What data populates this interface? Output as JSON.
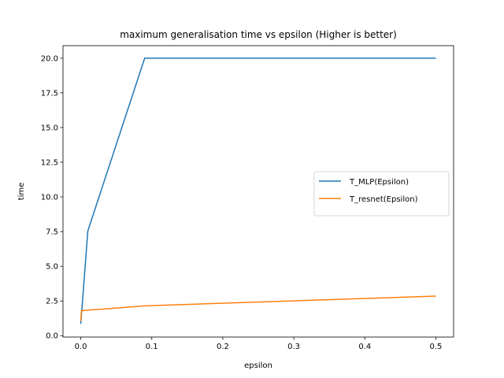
{
  "chart_data": {
    "type": "line",
    "title": "maximum generalisation time vs epsilon (Higher is better)",
    "xlabel": "epsilon",
    "ylabel": "time",
    "xlim": [
      -0.025,
      0.525
    ],
    "ylim": [
      -0.1,
      20.9
    ],
    "xticks": [
      0.0,
      0.1,
      0.2,
      0.3,
      0.4,
      0.5
    ],
    "xtick_labels": [
      "0.0",
      "0.1",
      "0.2",
      "0.3",
      "0.4",
      "0.5"
    ],
    "yticks": [
      0.0,
      2.5,
      5.0,
      7.5,
      10.0,
      12.5,
      15.0,
      17.5,
      20.0
    ],
    "ytick_labels": [
      "0.0",
      "2.5",
      "5.0",
      "7.5",
      "10.0",
      "12.5",
      "15.0",
      "17.5",
      "20.0"
    ],
    "grid": false,
    "legend_position": "center-right",
    "series": [
      {
        "name": "T_MLP(Epsilon)",
        "color": "#1f77b4",
        "x": [
          0.0,
          0.01,
          0.09,
          0.5
        ],
        "y": [
          0.85,
          7.55,
          20.0,
          20.0
        ]
      },
      {
        "name": "T_resnet(Epsilon)",
        "color": "#ff7f0e",
        "x": [
          0.0,
          0.001,
          0.09,
          0.5
        ],
        "y": [
          1.05,
          1.8,
          2.15,
          2.85
        ]
      }
    ]
  }
}
